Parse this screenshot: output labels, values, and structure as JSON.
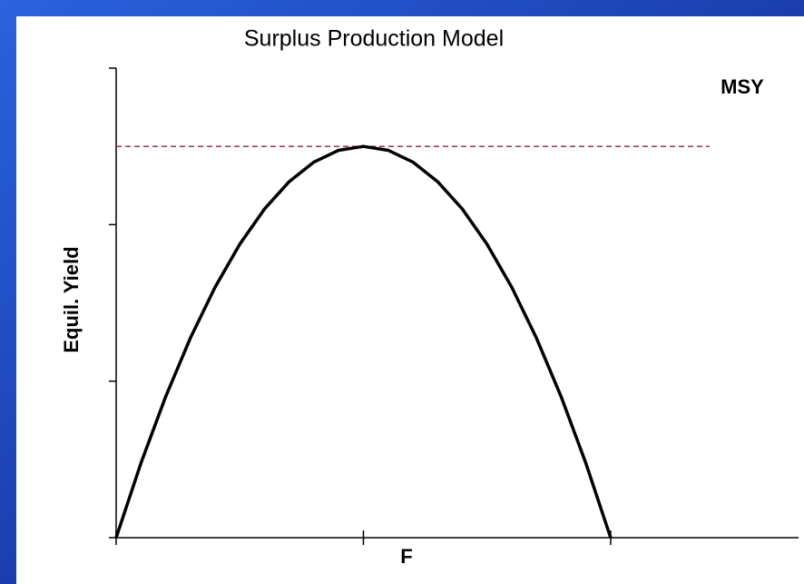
{
  "chart_data": {
    "type": "line",
    "title": "Surplus Production Model",
    "xlabel": "F",
    "ylabel": "Equil. Yield",
    "x": [
      0,
      0.1,
      0.2,
      0.3,
      0.4,
      0.5,
      0.6,
      0.7,
      0.8,
      0.9,
      1,
      1.1,
      1.2,
      1.3,
      1.4,
      1.5,
      1.6,
      1.7,
      1.8,
      1.9,
      2
    ],
    "series": [
      {
        "color": "#000000",
        "values": [
          0,
          0.475,
          0.9,
          1.275,
          1.6,
          1.875,
          2.1,
          2.275,
          2.4,
          2.475,
          2.5,
          2.475,
          2.4,
          2.275,
          2.1,
          1.875,
          1.6,
          1.275,
          0.9,
          0.475,
          0
        ]
      }
    ],
    "xlim": [
      0,
      2.76
    ],
    "xticks": [
      0,
      1,
      2
    ],
    "ylim": [
      0,
      3
    ],
    "yticks": [
      0,
      1,
      2,
      3
    ],
    "reference_line": {
      "label": "MSY",
      "value": 2.5,
      "xmax": 2.4,
      "color": "#8b2252"
    }
  }
}
